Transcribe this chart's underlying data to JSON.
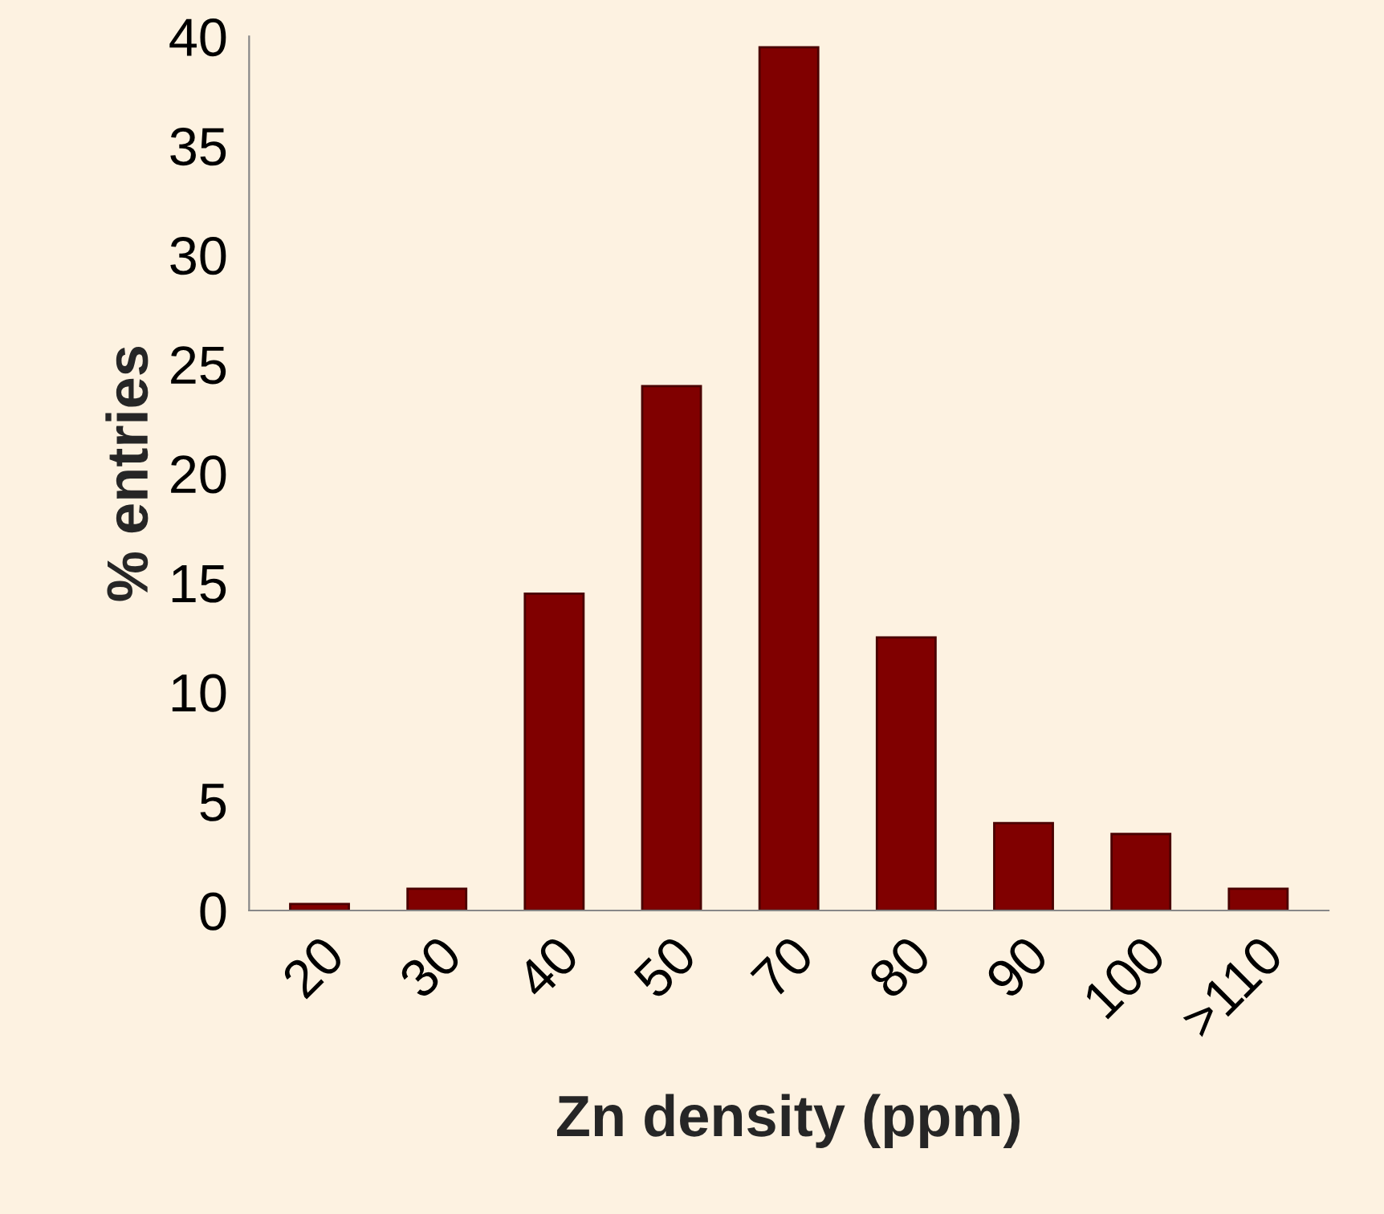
{
  "chart_data": {
    "type": "bar",
    "xlabel": "Zn density (ppm)",
    "ylabel": "% entries",
    "categories": [
      "20",
      "30",
      "40",
      "50",
      "70",
      "80",
      "90",
      "100",
      ">110"
    ],
    "values": [
      0.3,
      1,
      14.5,
      24,
      39.5,
      12.5,
      4,
      3.5,
      1
    ],
    "color": "#800000",
    "ylim": [
      0,
      40
    ],
    "yticks": [
      0,
      5,
      10,
      15,
      20,
      25,
      30,
      35,
      40
    ],
    "grid": false,
    "legend": false
  }
}
